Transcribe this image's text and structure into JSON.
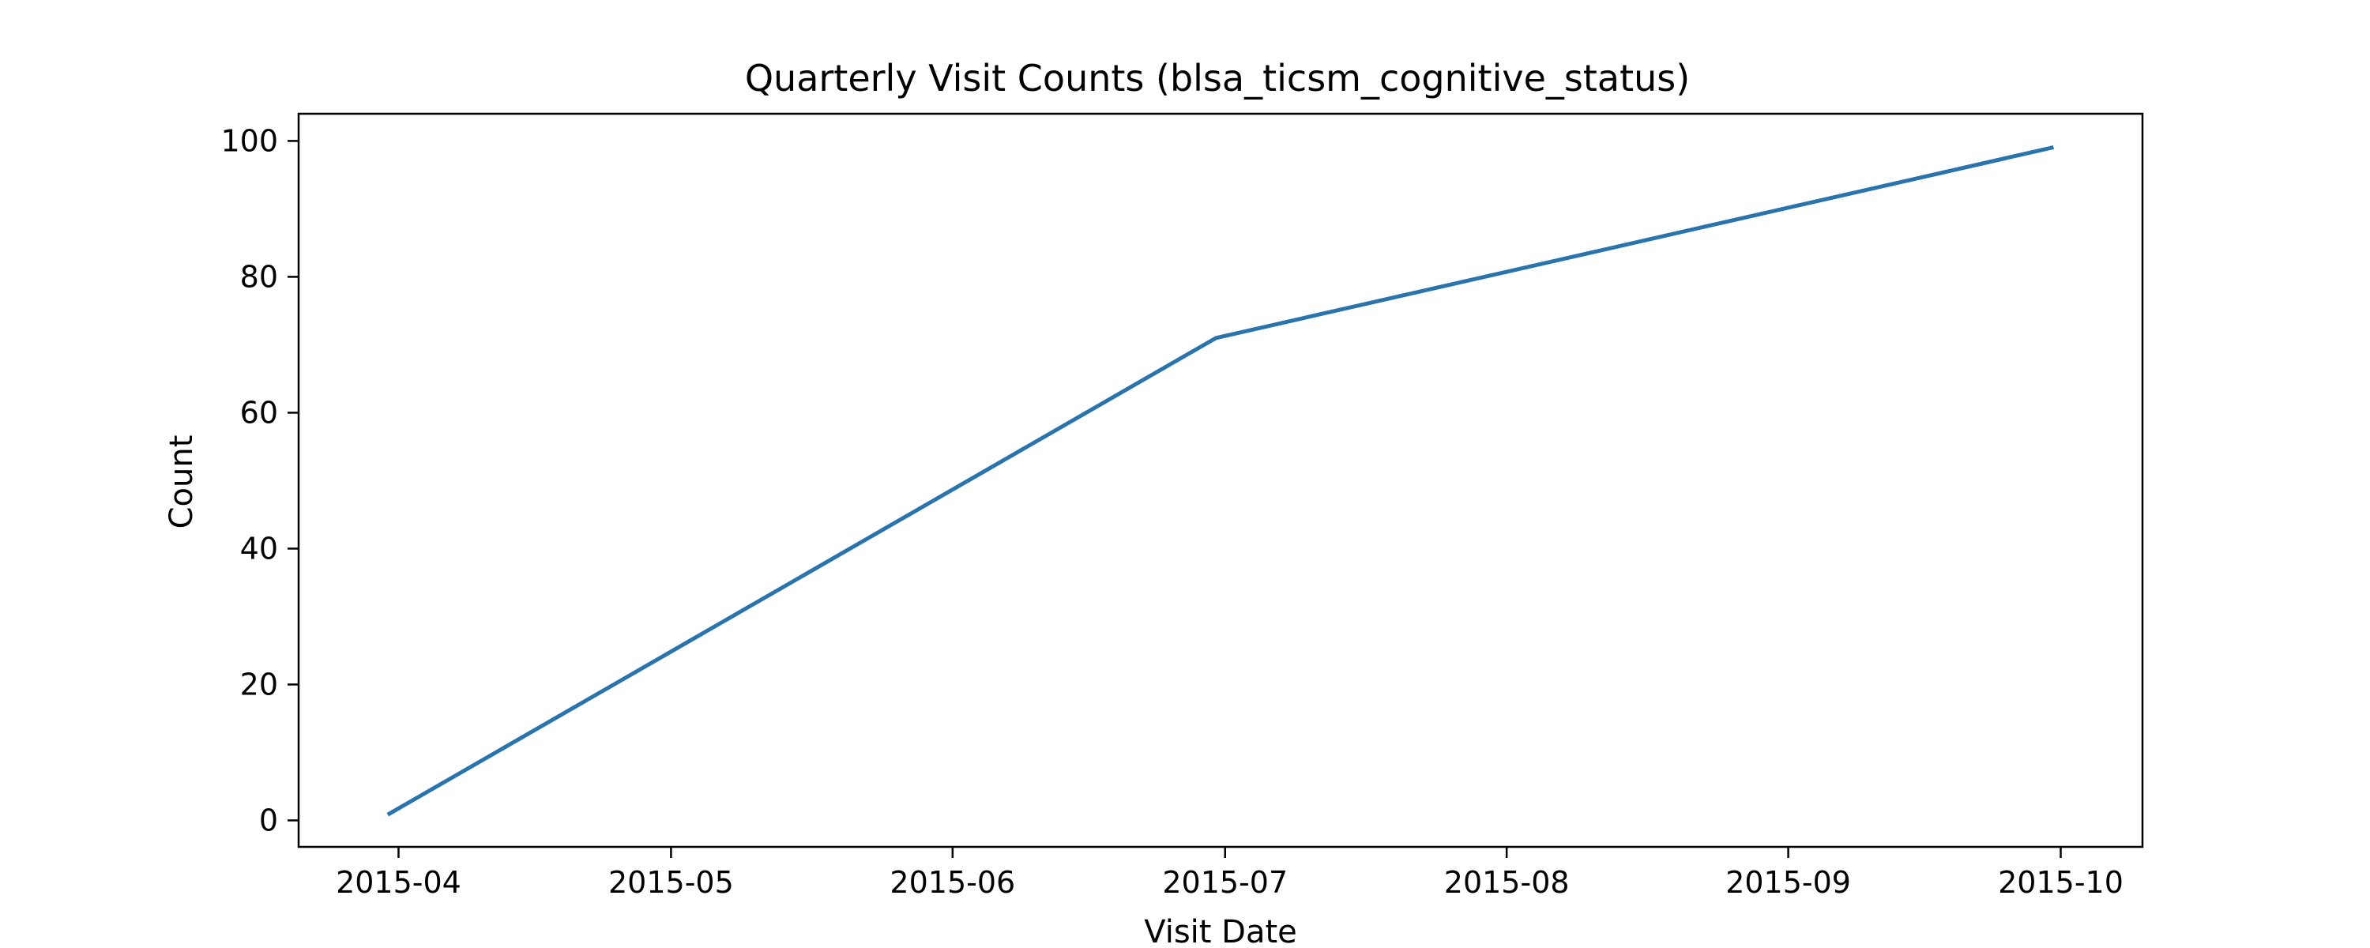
{
  "chart_data": {
    "type": "line",
    "title": "Quarterly Visit Counts (blsa_ticsm_cognitive_status)",
    "xlabel": "Visit Date",
    "ylabel": "Count",
    "x": [
      "2015-03-31",
      "2015-06-30",
      "2015-09-30"
    ],
    "series": [
      {
        "values": [
          1,
          71,
          99
        ],
        "color": "#2a74ad"
      }
    ],
    "x_ticks": [
      "2015-04",
      "2015-05",
      "2015-06",
      "2015-07",
      "2015-08",
      "2015-09",
      "2015-10"
    ],
    "y_ticks": [
      0,
      20,
      40,
      60,
      80,
      100
    ],
    "xlim": [
      "2015-03-21",
      "2015-10-10"
    ],
    "ylim": [
      -3.9,
      104
    ],
    "grid": false,
    "legend": "none"
  }
}
